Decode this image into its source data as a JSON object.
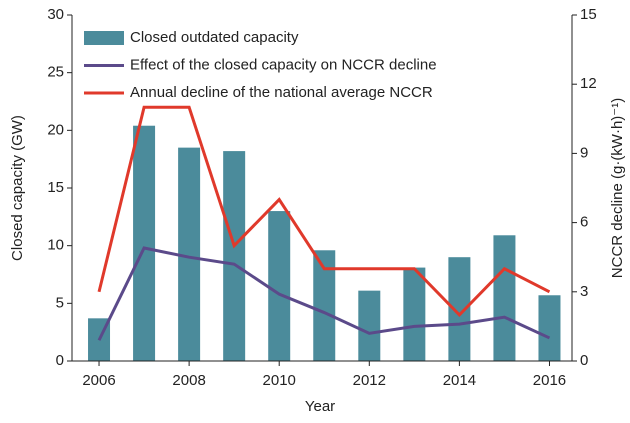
{
  "chart_data": {
    "type": "bar-line",
    "x": [
      2006,
      2007,
      2008,
      2009,
      2010,
      2011,
      2012,
      2013,
      2014,
      2015,
      2016
    ],
    "series": [
      {
        "name": "Closed outdated capacity",
        "type": "bar",
        "color": "#4b8b9b",
        "values": [
          3.7,
          20.4,
          18.5,
          18.2,
          13.0,
          9.6,
          6.1,
          8.1,
          9.0,
          10.9,
          5.7
        ]
      },
      {
        "name": "Effect of the closed capacity on NCCR decline",
        "type": "line",
        "axis": "y2",
        "color": "#5b4a8a",
        "values": [
          0.9,
          4.9,
          4.5,
          4.2,
          2.9,
          2.1,
          1.2,
          1.5,
          1.6,
          1.9,
          1.0
        ]
      },
      {
        "name": "Annual decline of the national average NCCR",
        "type": "line",
        "axis": "y2",
        "color": "#e0392b",
        "values": [
          3,
          11,
          11,
          5,
          7,
          4,
          4,
          4,
          2,
          4,
          3
        ]
      }
    ],
    "xlabel": "Year",
    "ylabel": "Closed capacity (GW)",
    "y2label": "NCCR decline (g·(kW·h)⁻¹)",
    "xlim": [
      2005.4,
      2016.5
    ],
    "xticks": [
      2006,
      2008,
      2010,
      2012,
      2014,
      2016
    ],
    "ylim": [
      0,
      30
    ],
    "yticks": [
      0,
      5,
      10,
      15,
      20,
      25,
      30
    ],
    "y2lim": [
      0,
      15
    ],
    "y2ticks": [
      0,
      3,
      6,
      9,
      12,
      15
    ],
    "legend": "upper left"
  }
}
